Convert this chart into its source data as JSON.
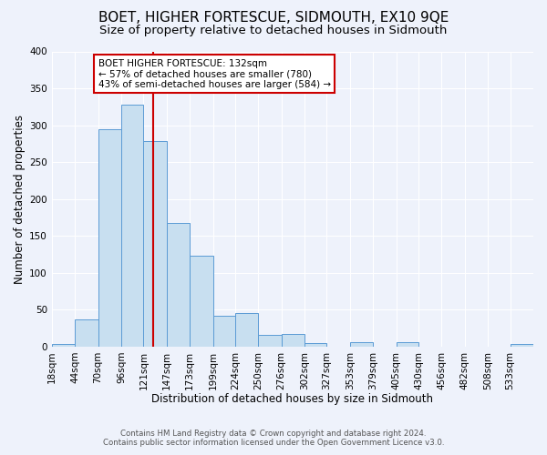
{
  "title": "BOET, HIGHER FORTESCUE, SIDMOUTH, EX10 9QE",
  "subtitle": "Size of property relative to detached houses in Sidmouth",
  "xlabel": "Distribution of detached houses by size in Sidmouth",
  "ylabel": "Number of detached properties",
  "footer_line1": "Contains HM Land Registry data © Crown copyright and database right 2024.",
  "footer_line2": "Contains public sector information licensed under the Open Government Licence v3.0.",
  "bin_labels": [
    "18sqm",
    "44sqm",
    "70sqm",
    "96sqm",
    "121sqm",
    "147sqm",
    "173sqm",
    "199sqm",
    "224sqm",
    "250sqm",
    "276sqm",
    "302sqm",
    "327sqm",
    "353sqm",
    "379sqm",
    "405sqm",
    "430sqm",
    "456sqm",
    "482sqm",
    "508sqm",
    "533sqm"
  ],
  "bar_values": [
    3,
    37,
    294,
    328,
    279,
    168,
    123,
    42,
    46,
    16,
    17,
    5,
    0,
    6,
    0,
    6,
    0,
    0,
    0,
    0,
    3
  ],
  "bar_color": "#c8dff0",
  "bar_edge_color": "#5b9bd5",
  "bin_edges": [
    18,
    44,
    70,
    96,
    121,
    147,
    173,
    199,
    224,
    250,
    276,
    302,
    327,
    353,
    379,
    405,
    430,
    456,
    482,
    508,
    533,
    559
  ],
  "property_size": 132,
  "annotation_title": "BOET HIGHER FORTESCUE: 132sqm",
  "annotation_line1": "← 57% of detached houses are smaller (780)",
  "annotation_line2": "43% of semi-detached houses are larger (584) →",
  "annotation_box_color": "#ffffff",
  "annotation_box_edge_color": "#cc0000",
  "vline_color": "#cc0000",
  "ylim": [
    0,
    400
  ],
  "yticks": [
    0,
    50,
    100,
    150,
    200,
    250,
    300,
    350,
    400
  ],
  "bg_color": "#eef2fb",
  "plot_bg_color": "#eef2fb",
  "grid_color": "#ffffff",
  "title_fontsize": 11,
  "subtitle_fontsize": 9.5,
  "axis_label_fontsize": 8.5,
  "tick_fontsize": 7.5,
  "annotation_fontsize": 7.5
}
